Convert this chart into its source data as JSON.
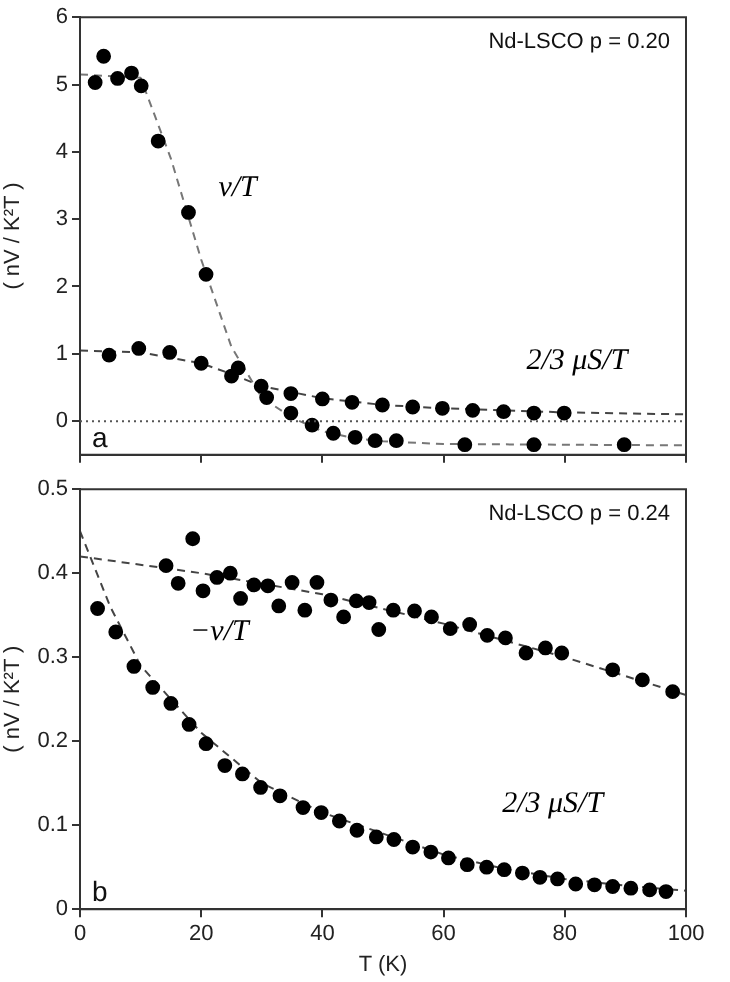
{
  "chart_data": [
    {
      "type": "scatter",
      "ylabel": "( nV / K²T )",
      "xlim": [
        0,
        100
      ],
      "ylim": [
        -0.5,
        6
      ],
      "xticks": [
        0,
        20,
        40,
        60,
        80,
        100
      ],
      "yticks": [
        0,
        1,
        2,
        3,
        4,
        5,
        6
      ],
      "tick_labels": "y",
      "grid": false,
      "legend": false,
      "marker": "circle",
      "ref_lines": [
        {
          "axis": "y",
          "value": 0,
          "line_style": "dotted"
        }
      ],
      "annotations": [
        "Nd-LSCO p = 0.20",
        "a"
      ],
      "series": [
        {
          "name": "ν/T",
          "color": "#000000",
          "x": [
            2.5,
            3.9,
            6.2,
            8.5,
            10.1,
            12.9,
            17.9,
            20.8,
            26.1,
            30.8,
            34.8,
            38.3,
            41.8,
            45.4,
            48.7,
            52.2,
            63.5,
            74.9,
            89.8
          ],
          "values": [
            5.03,
            5.42,
            5.09,
            5.17,
            4.98,
            4.16,
            3.1,
            2.18,
            0.79,
            0.35,
            0.12,
            -0.06,
            -0.18,
            -0.24,
            -0.29,
            -0.29,
            -0.35,
            -0.35,
            -0.35
          ]
        },
        {
          "name": "2/3 μS/T",
          "color": "#000000",
          "x": [
            4.8,
            9.7,
            14.8,
            20,
            25,
            29.9,
            34.8,
            40,
            44.9,
            49.9,
            54.9,
            59.8,
            64.8,
            69.9,
            74.9,
            79.9
          ],
          "values": [
            0.98,
            1.08,
            1.02,
            0.86,
            0.67,
            0.52,
            0.41,
            0.33,
            0.28,
            0.24,
            0.21,
            0.19,
            0.16,
            0.14,
            0.12,
            0.12
          ]
        },
        {
          "type": "line",
          "color": "#777777",
          "line_style": "dashed",
          "marker": "none",
          "x": [
            0,
            10,
            15,
            20,
            25,
            30,
            35,
            40,
            45,
            50,
            60,
            100
          ],
          "values": [
            5.15,
            5.1,
            3.9,
            2.4,
            1.1,
            0.35,
            0.05,
            -0.15,
            -0.25,
            -0.3,
            -0.34,
            -0.36
          ]
        },
        {
          "type": "line",
          "color": "#444444",
          "line_style": "dashed",
          "marker": "none",
          "x": [
            0,
            10,
            20,
            25,
            30,
            40,
            50,
            60,
            80,
            100
          ],
          "values": [
            1.05,
            1.02,
            0.86,
            0.7,
            0.52,
            0.34,
            0.24,
            0.19,
            0.13,
            0.1
          ]
        }
      ]
    },
    {
      "type": "scatter",
      "xlabel": "T (K)",
      "ylabel": "( nV / K²T )",
      "xlim": [
        0,
        100
      ],
      "ylim": [
        0,
        0.5
      ],
      "xticks": [
        0,
        20,
        40,
        60,
        80,
        100
      ],
      "yticks": [
        0,
        0.1,
        0.2,
        0.3,
        0.4,
        0.5
      ],
      "grid": false,
      "legend": false,
      "marker": "circle",
      "annotations": [
        "Nd-LSCO p = 0.24",
        "b"
      ],
      "series": [
        {
          "name": "−ν/T",
          "color": "#000000",
          "x": [
            14.2,
            16.2,
            18.6,
            20.3,
            22.6,
            24.8,
            26.5,
            28.7,
            31,
            32.8,
            35,
            37.1,
            39.1,
            41.4,
            43.5,
            45.6,
            47.7,
            49.3,
            51.7,
            55.2,
            58,
            61.1,
            64.3,
            67.2,
            70.2,
            73.6,
            76.8,
            79.5,
            87.9,
            92.8,
            97.8
          ],
          "values": [
            0.409,
            0.388,
            0.441,
            0.379,
            0.395,
            0.4,
            0.37,
            0.386,
            0.385,
            0.361,
            0.389,
            0.356,
            0.389,
            0.368,
            0.348,
            0.367,
            0.365,
            0.333,
            0.356,
            0.355,
            0.348,
            0.334,
            0.339,
            0.326,
            0.323,
            0.305,
            0.311,
            0.305,
            0.285,
            0.273,
            0.259
          ]
        },
        {
          "name": "2/3 μS/T",
          "color": "#000000",
          "x": [
            2.9,
            5.9,
            8.9,
            12,
            15,
            18,
            20.8,
            23.9,
            26.8,
            29.8,
            33,
            36.8,
            39.8,
            42.8,
            45.7,
            48.9,
            51.8,
            54.9,
            57.9,
            60.8,
            63.9,
            67.1,
            70,
            73,
            75.9,
            78.8,
            81.8,
            84.9,
            87.9,
            90.9,
            94,
            96.7
          ],
          "values": [
            0.358,
            0.33,
            0.289,
            0.264,
            0.245,
            0.22,
            0.197,
            0.171,
            0.161,
            0.145,
            0.135,
            0.121,
            0.115,
            0.105,
            0.094,
            0.086,
            0.083,
            0.074,
            0.068,
            0.061,
            0.053,
            0.05,
            0.047,
            0.043,
            0.038,
            0.036,
            0.03,
            0.029,
            0.027,
            0.025,
            0.023,
            0.021
          ]
        },
        {
          "type": "line",
          "color": "#444444",
          "line_style": "dashed",
          "marker": "none",
          "x": [
            0,
            20,
            40,
            60,
            80,
            100
          ],
          "values": [
            0.42,
            0.4,
            0.375,
            0.34,
            0.3,
            0.255
          ]
        },
        {
          "type": "line",
          "color": "#444444",
          "line_style": "dashed",
          "marker": "none",
          "x": [
            0,
            5,
            10,
            20,
            30,
            40,
            50,
            60,
            70,
            80,
            90,
            100
          ],
          "values": [
            0.45,
            0.36,
            0.29,
            0.21,
            0.15,
            0.115,
            0.09,
            0.065,
            0.048,
            0.036,
            0.028,
            0.022
          ]
        }
      ]
    }
  ]
}
